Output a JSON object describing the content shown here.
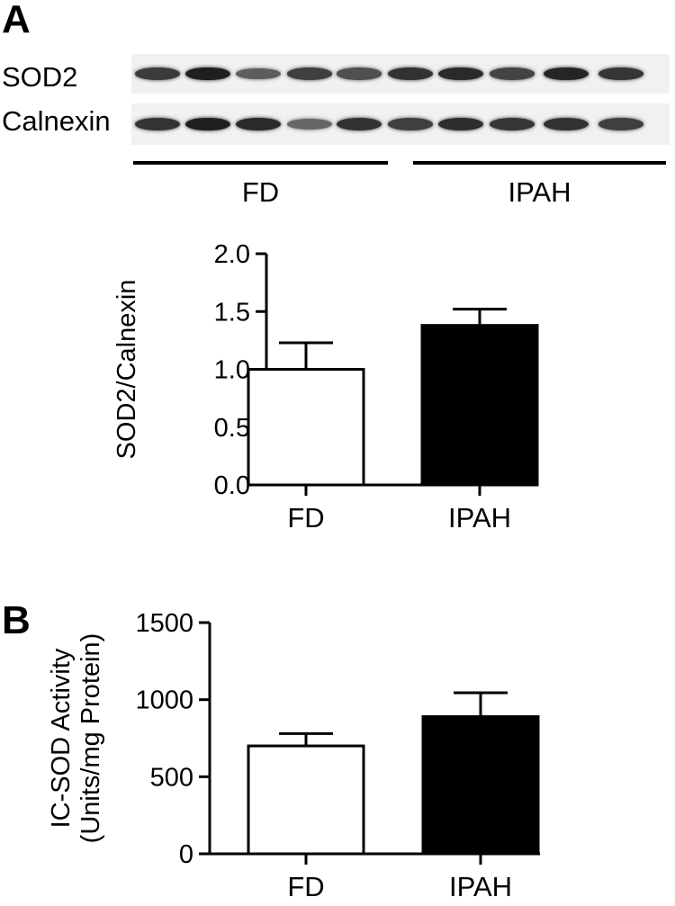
{
  "panels": {
    "a": {
      "letter": "A",
      "blot": {
        "rows": [
          {
            "label": "SOD2",
            "band_intensity": [
              0.82,
              0.95,
              0.66,
              0.8,
              0.72,
              0.86,
              0.9,
              0.78,
              0.92,
              0.84
            ]
          },
          {
            "label": "Calnexin",
            "band_intensity": [
              0.85,
              0.95,
              0.9,
              0.62,
              0.86,
              0.8,
              0.88,
              0.84,
              0.86,
              0.8
            ]
          }
        ],
        "groups": [
          {
            "label": "FD",
            "lanes": 5
          },
          {
            "label": "IPAH",
            "lanes": 5
          }
        ]
      }
    },
    "b": {
      "letter": "B"
    }
  },
  "chart_data": [
    {
      "type": "bar",
      "title": "",
      "xlabel": "",
      "ylabel": "SOD2/Calnexin",
      "categories": [
        "FD",
        "IPAH"
      ],
      "values": [
        1.0,
        1.38
      ],
      "error_upper": [
        0.23,
        0.14
      ],
      "bar_colors": [
        "#ffffff",
        "#000000"
      ],
      "ylim": [
        0,
        2.0
      ],
      "yticks": [
        "0.0",
        "0.5",
        "1.0",
        "1.5",
        "2.0"
      ],
      "grid": false
    },
    {
      "type": "bar",
      "title": "",
      "xlabel": "",
      "ylabel": "IC-SOD Activity",
      "ylabel2": "(Units/mg Protein)",
      "categories": [
        "FD",
        "IPAH"
      ],
      "values": [
        700,
        890
      ],
      "error_upper": [
        80,
        155
      ],
      "bar_colors": [
        "#ffffff",
        "#000000"
      ],
      "ylim": [
        0,
        1500
      ],
      "yticks": [
        "0",
        "500",
        "1000",
        "1500"
      ],
      "grid": false
    }
  ]
}
